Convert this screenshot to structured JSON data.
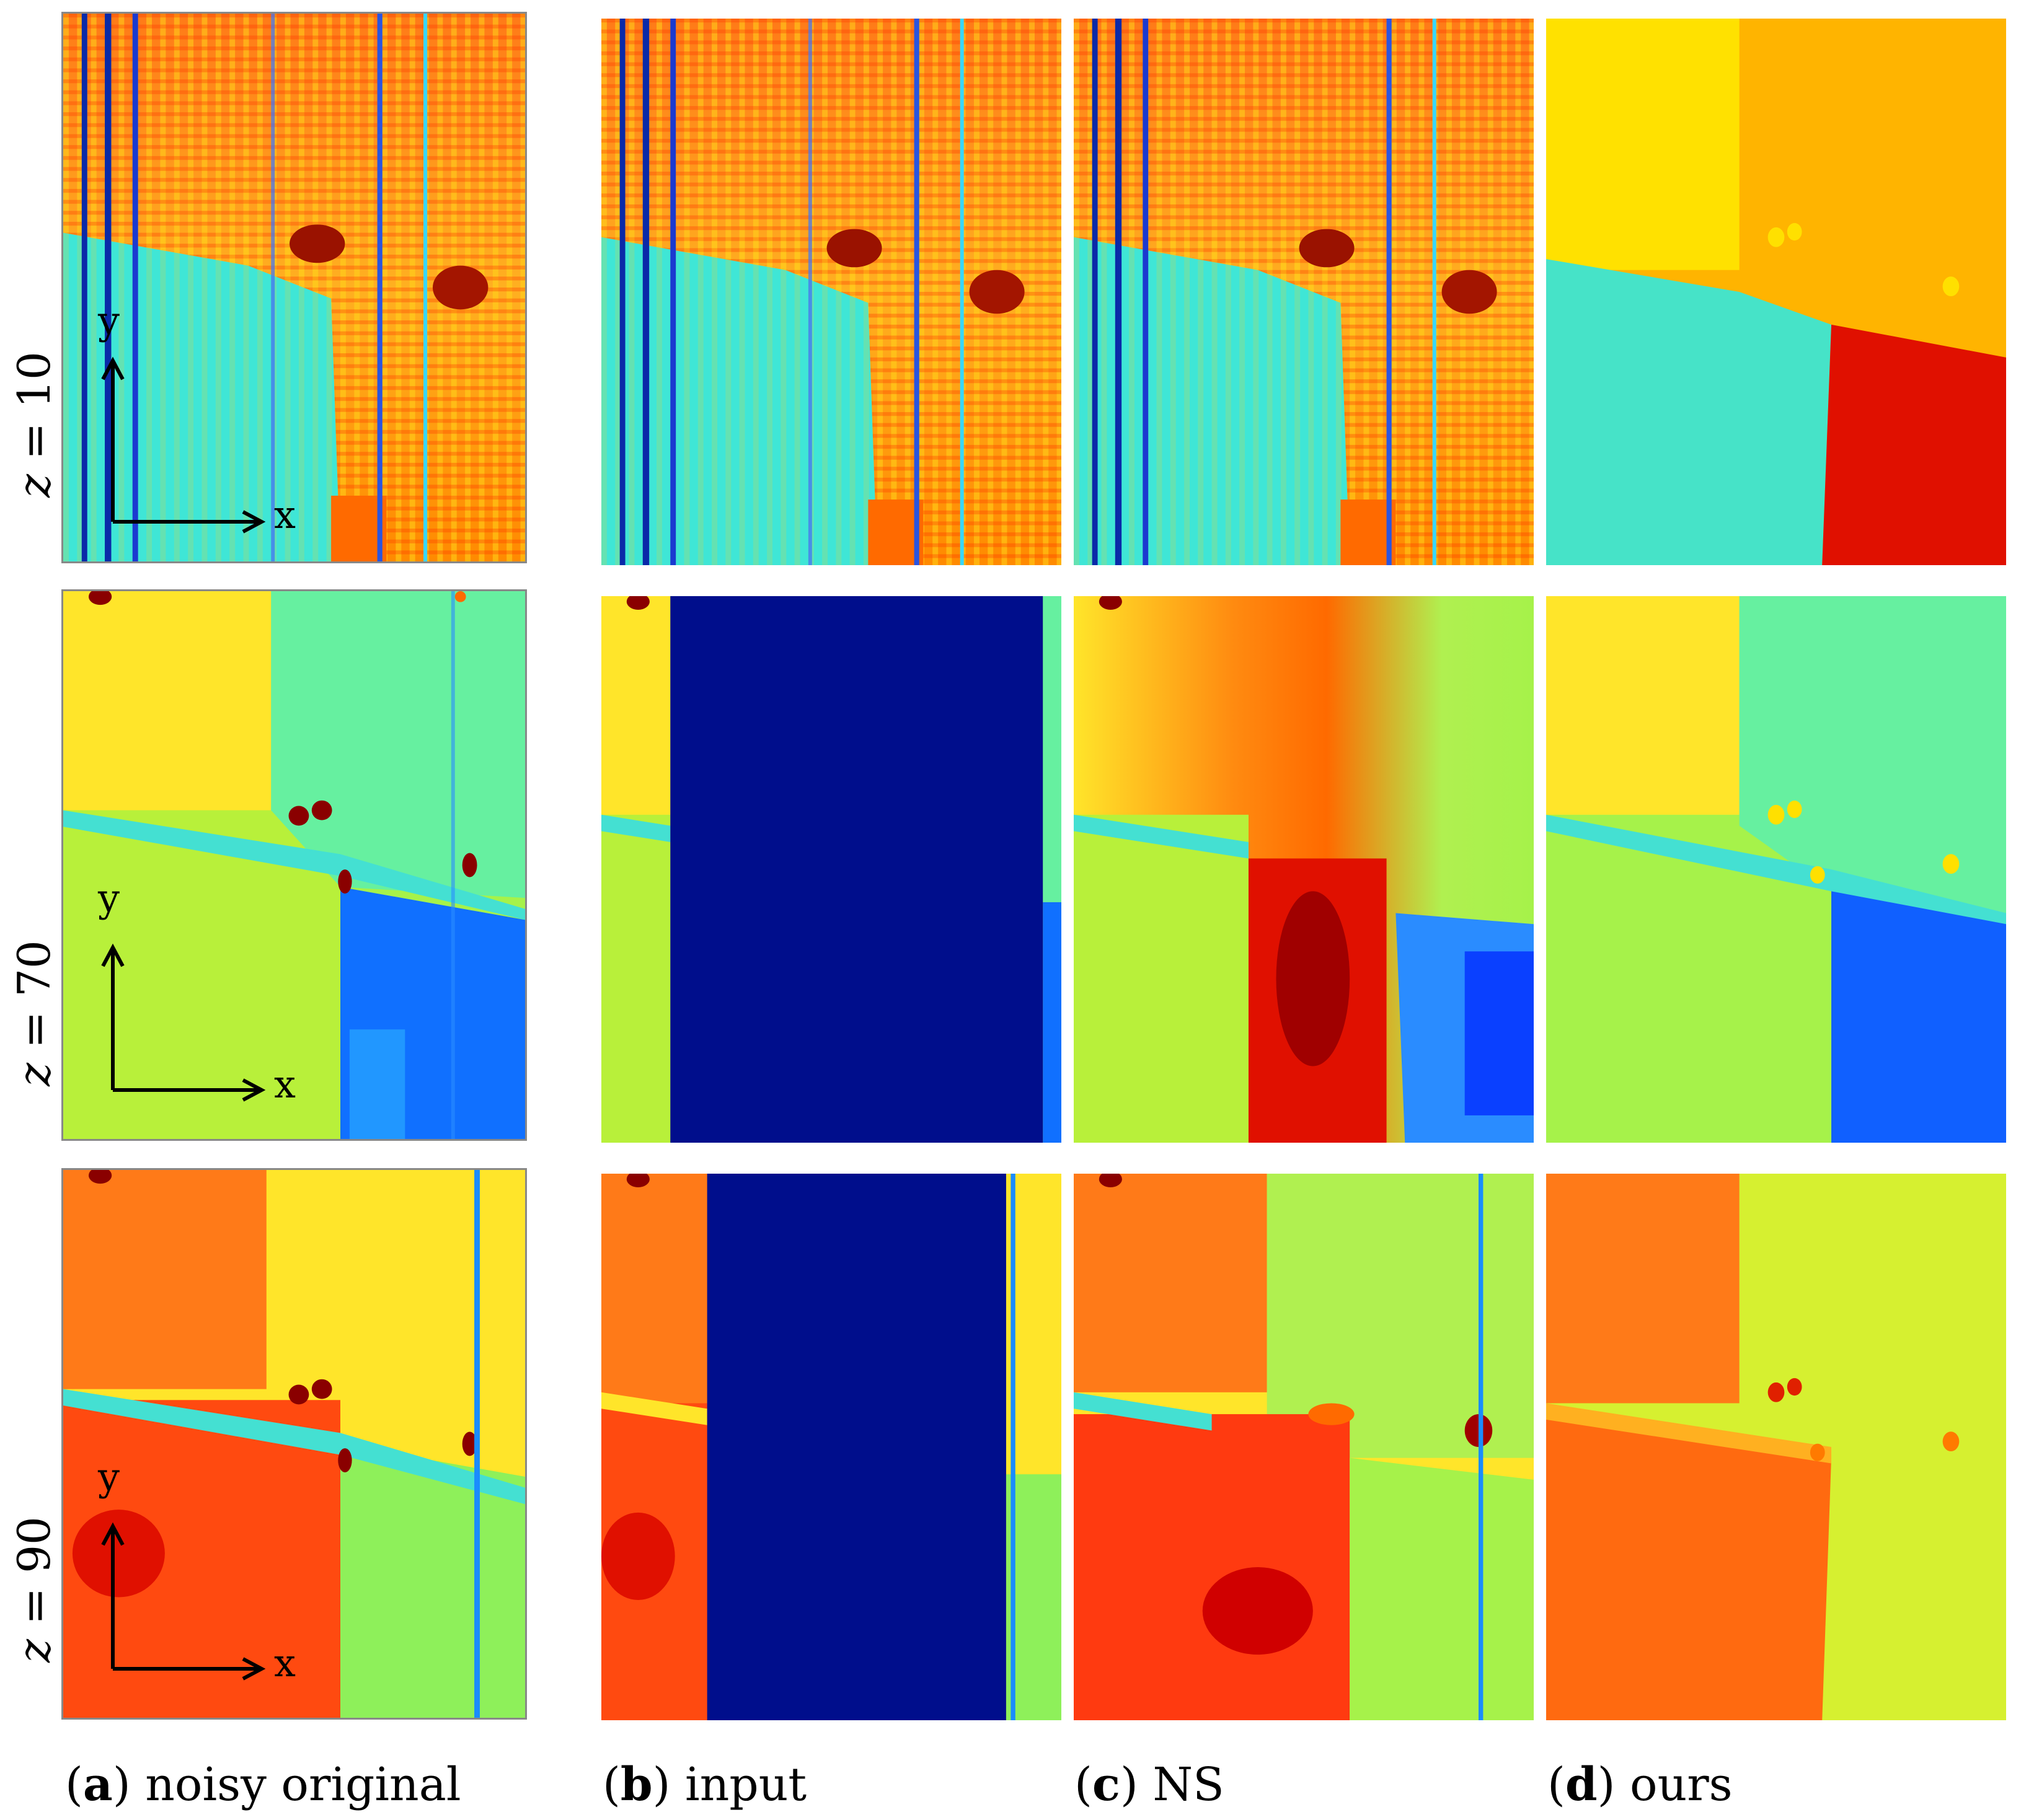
{
  "row_labels": [
    {
      "var": "z",
      "eq": " = ",
      "num": "10"
    },
    {
      "var": "z",
      "eq": " = ",
      "num": "70"
    },
    {
      "var": "z",
      "eq": " = ",
      "num": "90"
    }
  ],
  "axes": {
    "x": "x",
    "y": "y"
  },
  "captions": [
    {
      "letter": "a",
      "text": "noisy original"
    },
    {
      "letter": "b",
      "text": "input"
    },
    {
      "letter": "c",
      "text": "NS"
    },
    {
      "letter": "d",
      "text": "ours"
    }
  ],
  "colors": {
    "colormap": "jet",
    "missing_block": "#000e8c",
    "dark_red": "#8a0000",
    "red": "#e00000",
    "orange": "#ff6600",
    "yellow": "#ffff00",
    "green": "#90ef5a",
    "cyan": "#45e6e6",
    "blue": "#0050ff"
  }
}
